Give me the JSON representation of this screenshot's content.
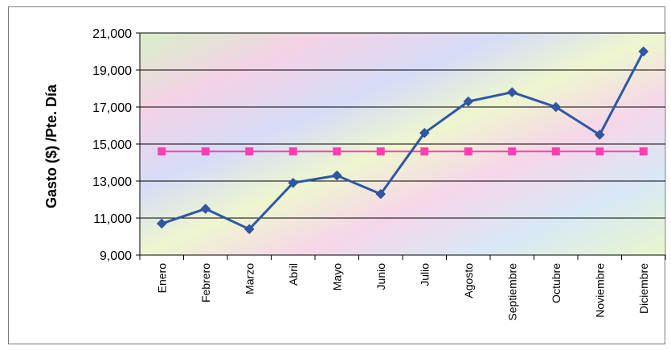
{
  "chart_data": {
    "type": "line",
    "title": "",
    "xlabel": "",
    "ylabel": "Gasto ($) /Pte. Día",
    "ylim": [
      9000,
      21000
    ],
    "yticks": [
      9000,
      11000,
      13000,
      15000,
      17000,
      19000,
      21000
    ],
    "ytick_labels": [
      "9,000",
      "11,000",
      "13,000",
      "15,000",
      "17,000",
      "19,000",
      "21,000"
    ],
    "grid": true,
    "legend": "none",
    "categories": [
      "Enero",
      "Febrero",
      "Marzo",
      "Abril",
      "Mayo",
      "Junio",
      "Julio",
      "Agosto",
      "Septiembre",
      "Octubre",
      "Noviembre",
      "Diciembre"
    ],
    "series": [
      {
        "color": "#2e57a5",
        "marker": "diamond",
        "values": [
          10700,
          11500,
          10400,
          12900,
          13300,
          12300,
          15600,
          17300,
          17800,
          17000,
          15500,
          20000
        ]
      },
      {
        "color": "#ff3fb2",
        "marker": "square",
        "values": [
          14600,
          14600,
          14600,
          14600,
          14600,
          14600,
          14600,
          14600,
          14600,
          14600,
          14600,
          14600
        ]
      }
    ]
  }
}
